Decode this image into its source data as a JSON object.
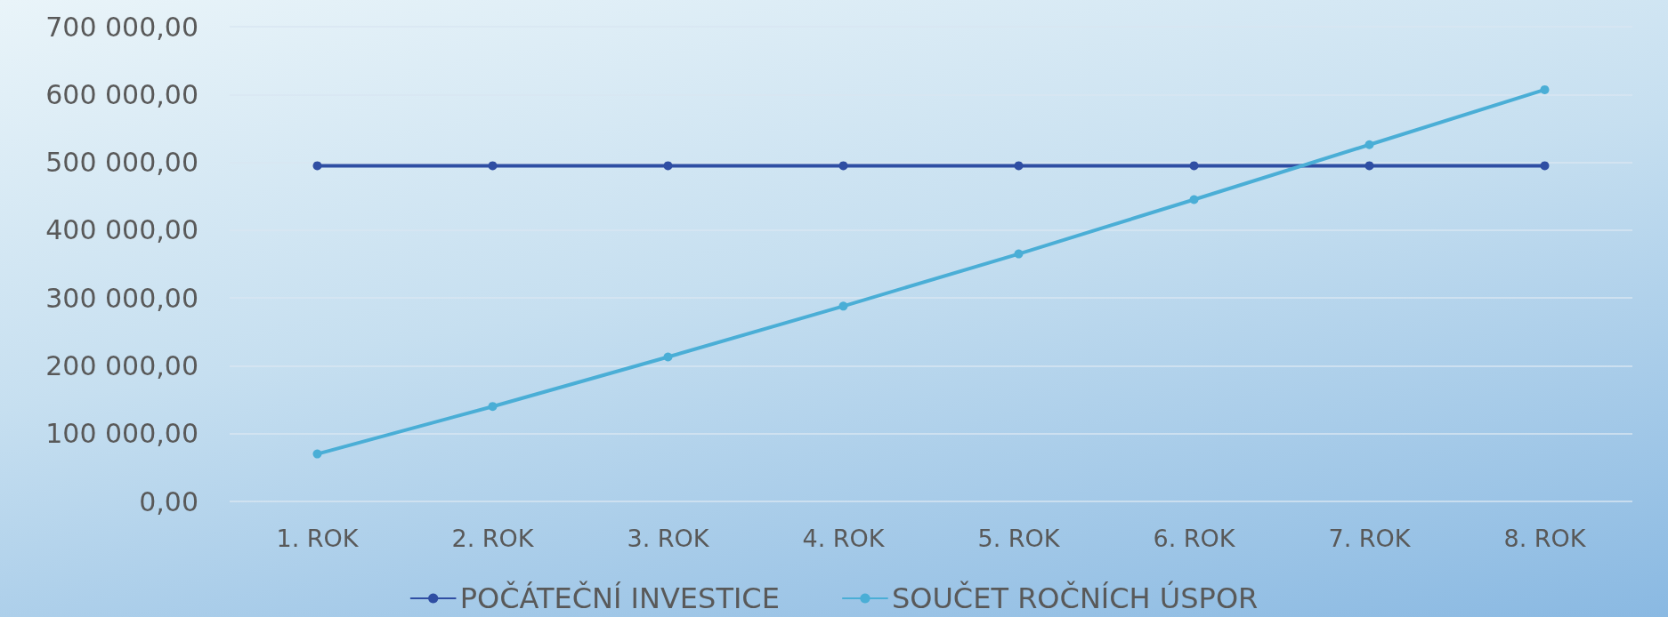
{
  "chart_data": {
    "type": "line",
    "categories": [
      "1. ROK",
      "2. ROK",
      "3. ROK",
      "4. ROK",
      "5. ROK",
      "6. ROK",
      "7. ROK",
      "8. ROK"
    ],
    "series": [
      {
        "name": "POČÁTEČNÍ INVESTICE",
        "color": "#2f4ea3",
        "values": [
          495000,
          495000,
          495000,
          495000,
          495000,
          495000,
          495000,
          495000
        ]
      },
      {
        "name": "SOUČET ROČNÍCH ÚSPOR",
        "color": "#4aaed6",
        "values": [
          70000,
          140000,
          213000,
          288000,
          365000,
          445000,
          526000,
          607000
        ]
      }
    ],
    "ylim": [
      0,
      700000
    ],
    "yticks": [
      {
        "value": 0,
        "label": "0,00"
      },
      {
        "value": 100000,
        "label": "100 000,00"
      },
      {
        "value": 200000,
        "label": "200 000,00"
      },
      {
        "value": 300000,
        "label": "300 000,00"
      },
      {
        "value": 400000,
        "label": "400 000,00"
      },
      {
        "value": 500000,
        "label": "500 000,00"
      },
      {
        "value": 600000,
        "label": "600 000,00"
      },
      {
        "value": 700000,
        "label": "700 000,00"
      }
    ],
    "grid": "y",
    "legend": "bottom",
    "marker": "circle",
    "line_style": "solid"
  }
}
